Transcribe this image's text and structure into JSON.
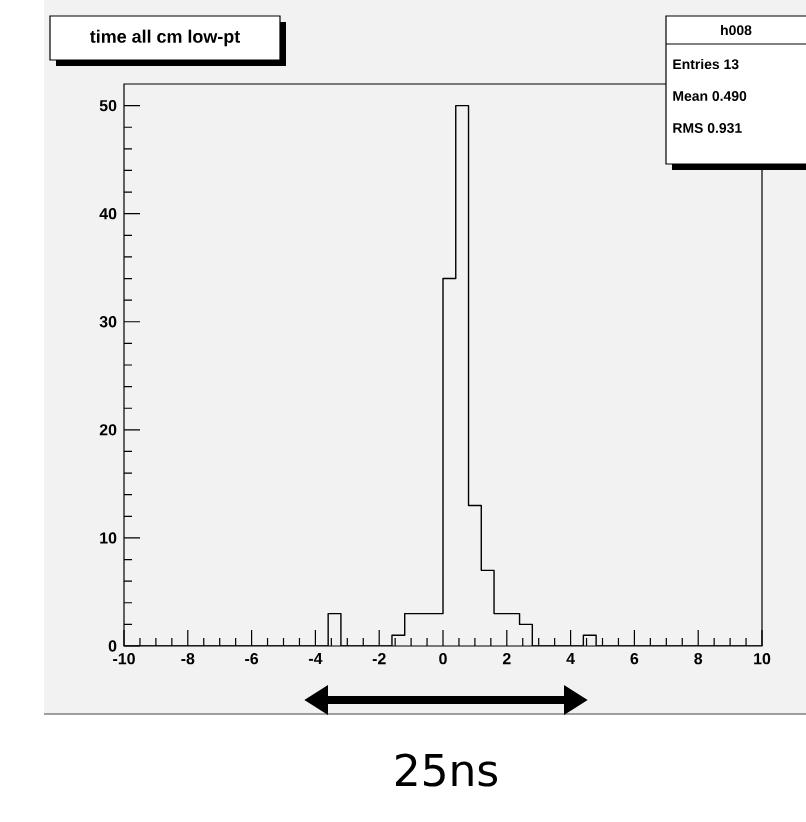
{
  "chart_data": {
    "type": "histogram",
    "title": "time all cm low-pt",
    "bins": [
      -10,
      -9.6,
      -9.2,
      -8.8,
      -8.4,
      -8,
      -7.6,
      -7.2,
      -6.8,
      -6.4,
      -6,
      -5.6,
      -5.2,
      -4.8,
      -4.4,
      -4,
      -3.6,
      -3.2,
      -2.8,
      -2.4,
      -2,
      -1.6,
      -1.2,
      -0.8,
      -0.4,
      0,
      0.4,
      0.8,
      1.2,
      1.6,
      2,
      2.4,
      2.8,
      3.2,
      3.6,
      4,
      4.4,
      4.8,
      5.2,
      5.6,
      6,
      6.4,
      6.8,
      7.2,
      7.6,
      8,
      8.4,
      8.8,
      9.2,
      9.6,
      10
    ],
    "values": [
      0,
      0,
      0,
      0,
      0,
      0,
      0,
      0,
      0,
      0,
      0,
      0,
      0,
      0,
      0,
      0,
      3,
      0,
      0,
      0,
      0,
      1,
      3,
      3,
      3,
      34,
      50,
      13,
      7,
      3,
      3,
      2,
      0,
      0,
      0,
      0,
      1,
      0,
      0,
      0,
      0,
      0,
      0,
      0,
      0,
      0,
      0,
      0,
      0,
      0
    ],
    "color": "#000000",
    "xlim": [
      -10,
      10
    ],
    "ylim": [
      0,
      52
    ],
    "xticks": [
      -10,
      -8,
      -6,
      -4,
      -2,
      0,
      2,
      4,
      6,
      8,
      10
    ],
    "yticks": [
      0,
      10,
      20,
      30,
      40,
      50
    ],
    "grid": false,
    "annotations": [
      "h008",
      "Entries      13",
      "Mean    0.490",
      "RMS     0.931",
      "25ns"
    ]
  }
}
